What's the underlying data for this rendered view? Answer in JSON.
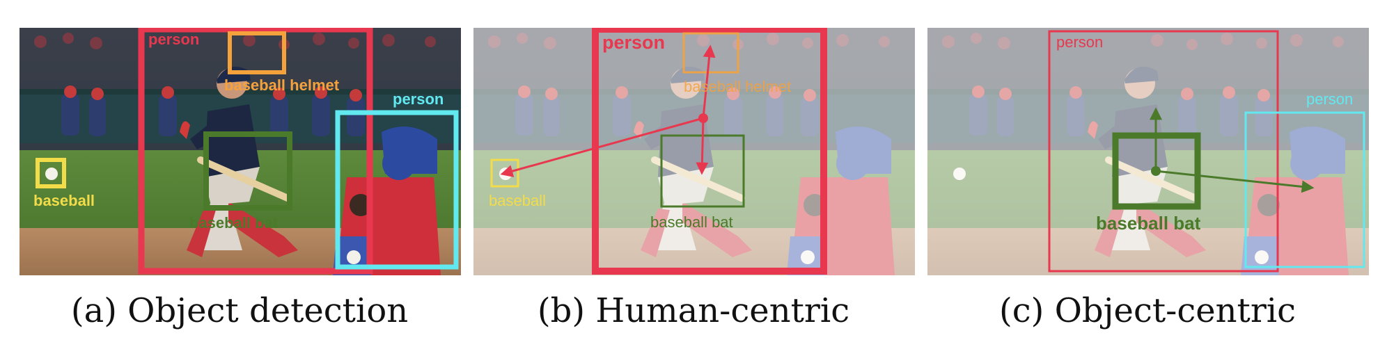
{
  "colors": {
    "person": "#e8384f",
    "helmet": "#f5a23c",
    "baseball": "#f3dc4a",
    "bat": "#4a7a2a",
    "catcher": "#62e9f0"
  },
  "panels": [
    {
      "caption": "(a) Object detection",
      "labels": {
        "person": "person",
        "helmet": "baseball helmet",
        "catcher": "person",
        "baseball": "baseball",
        "bat": "baseball bat"
      }
    },
    {
      "caption": "(b) Human-centric",
      "labels": {
        "person": "person",
        "helmet": "baseball helmet",
        "baseball": "baseball",
        "bat": "baseball bat"
      }
    },
    {
      "caption": "(c) Object-centric",
      "labels": {
        "person": "person",
        "catcher": "person",
        "bat": "baseball bat"
      }
    }
  ]
}
